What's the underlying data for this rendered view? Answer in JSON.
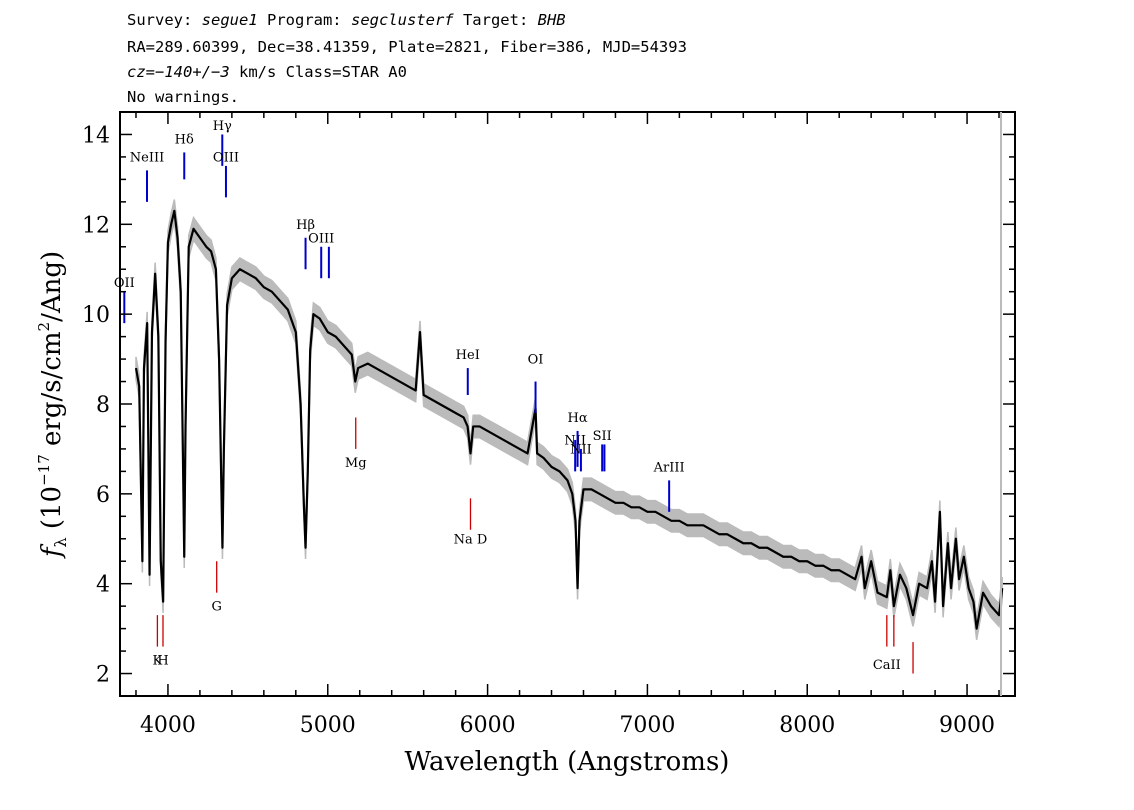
{
  "header": {
    "survey_label": "Survey: ",
    "survey": "segue1",
    "program_label": " Program: ",
    "program": "segclusterf",
    "target_label": " Target: ",
    "target": "BHB",
    "line2": "RA=289.60399, Dec=38.41359, Plate=2821, Fiber=386, MJD=54393",
    "cz": "cz=−140+/−3",
    "line3_rest": " km/s Class=STAR A0",
    "line4": "No warnings."
  },
  "chart_data": {
    "type": "line",
    "title": "",
    "xlabel": "Wavelength (Angstroms)",
    "ylabel_prefix": "f",
    "ylabel_sub": "λ",
    "ylabel_rest": " (10",
    "ylabel_exp": "−17",
    "ylabel_mid": " erg/s/cm",
    "ylabel_exp2": "2",
    "ylabel_end": "/Ang)",
    "xlim": [
      3700,
      9300
    ],
    "ylim": [
      1.5,
      14.5
    ],
    "x_ticks": [
      4000,
      5000,
      6000,
      7000,
      8000,
      9000
    ],
    "x_tick_labels": [
      "4000",
      "5000",
      "6000",
      "7000",
      "8000",
      "9000"
    ],
    "y_ticks": [
      2,
      4,
      6,
      8,
      10,
      12,
      14
    ],
    "y_tick_labels": [
      "2",
      "4",
      "6",
      "8",
      "10",
      "12",
      "14"
    ],
    "grid": false,
    "series_colors": {
      "flux": "#000000",
      "error": "#bbbbbb",
      "emission": "#0000cc",
      "absorption": "#cc0000"
    },
    "spectrum": [
      [
        3800,
        8.8
      ],
      [
        3820,
        8.4
      ],
      [
        3840,
        4.5
      ],
      [
        3850,
        8.8
      ],
      [
        3870,
        9.8
      ],
      [
        3885,
        4.2
      ],
      [
        3900,
        9.6
      ],
      [
        3920,
        10.9
      ],
      [
        3940,
        9.5
      ],
      [
        3955,
        4.5
      ],
      [
        3970,
        3.6
      ],
      [
        3985,
        9.4
      ],
      [
        4000,
        11.6
      ],
      [
        4020,
        12.0
      ],
      [
        4040,
        12.3
      ],
      [
        4060,
        11.7
      ],
      [
        4080,
        10.5
      ],
      [
        4095,
        6.5
      ],
      [
        4102,
        4.6
      ],
      [
        4110,
        7.5
      ],
      [
        4130,
        11.5
      ],
      [
        4160,
        11.9
      ],
      [
        4200,
        11.7
      ],
      [
        4240,
        11.5
      ],
      [
        4270,
        11.4
      ],
      [
        4300,
        11.0
      ],
      [
        4320,
        9.0
      ],
      [
        4335,
        6.0
      ],
      [
        4341,
        4.8
      ],
      [
        4350,
        7.0
      ],
      [
        4370,
        10.2
      ],
      [
        4400,
        10.8
      ],
      [
        4450,
        11.0
      ],
      [
        4500,
        10.9
      ],
      [
        4550,
        10.8
      ],
      [
        4600,
        10.6
      ],
      [
        4650,
        10.5
      ],
      [
        4700,
        10.3
      ],
      [
        4750,
        10.1
      ],
      [
        4800,
        9.6
      ],
      [
        4830,
        8.0
      ],
      [
        4850,
        5.8
      ],
      [
        4861,
        4.8
      ],
      [
        4875,
        6.5
      ],
      [
        4890,
        9.2
      ],
      [
        4910,
        10.0
      ],
      [
        4950,
        9.9
      ],
      [
        5000,
        9.6
      ],
      [
        5050,
        9.5
      ],
      [
        5100,
        9.3
      ],
      [
        5150,
        9.1
      ],
      [
        5172,
        8.5
      ],
      [
        5190,
        8.8
      ],
      [
        5250,
        8.9
      ],
      [
        5300,
        8.8
      ],
      [
        5350,
        8.7
      ],
      [
        5400,
        8.6
      ],
      [
        5450,
        8.5
      ],
      [
        5500,
        8.4
      ],
      [
        5550,
        8.3
      ],
      [
        5577,
        9.6
      ],
      [
        5600,
        8.2
      ],
      [
        5650,
        8.1
      ],
      [
        5700,
        8.0
      ],
      [
        5750,
        7.9
      ],
      [
        5800,
        7.8
      ],
      [
        5850,
        7.7
      ],
      [
        5875,
        7.5
      ],
      [
        5893,
        6.9
      ],
      [
        5910,
        7.5
      ],
      [
        5950,
        7.5
      ],
      [
        6000,
        7.4
      ],
      [
        6050,
        7.3
      ],
      [
        6100,
        7.2
      ],
      [
        6150,
        7.1
      ],
      [
        6200,
        7.0
      ],
      [
        6250,
        6.9
      ],
      [
        6300,
        7.9
      ],
      [
        6310,
        6.9
      ],
      [
        6350,
        6.8
      ],
      [
        6400,
        6.6
      ],
      [
        6450,
        6.5
      ],
      [
        6500,
        6.3
      ],
      [
        6530,
        6.0
      ],
      [
        6550,
        5.4
      ],
      [
        6563,
        3.9
      ],
      [
        6575,
        5.4
      ],
      [
        6600,
        6.1
      ],
      [
        6650,
        6.1
      ],
      [
        6700,
        6.0
      ],
      [
        6750,
        5.9
      ],
      [
        6800,
        5.8
      ],
      [
        6850,
        5.8
      ],
      [
        6900,
        5.7
      ],
      [
        6950,
        5.7
      ],
      [
        7000,
        5.6
      ],
      [
        7050,
        5.6
      ],
      [
        7100,
        5.5
      ],
      [
        7150,
        5.4
      ],
      [
        7200,
        5.4
      ],
      [
        7250,
        5.3
      ],
      [
        7300,
        5.3
      ],
      [
        7350,
        5.3
      ],
      [
        7400,
        5.2
      ],
      [
        7450,
        5.1
      ],
      [
        7500,
        5.1
      ],
      [
        7550,
        5.0
      ],
      [
        7600,
        4.9
      ],
      [
        7650,
        4.9
      ],
      [
        7700,
        4.8
      ],
      [
        7750,
        4.8
      ],
      [
        7800,
        4.7
      ],
      [
        7850,
        4.6
      ],
      [
        7900,
        4.6
      ],
      [
        7950,
        4.5
      ],
      [
        8000,
        4.5
      ],
      [
        8050,
        4.4
      ],
      [
        8100,
        4.4
      ],
      [
        8150,
        4.3
      ],
      [
        8200,
        4.3
      ],
      [
        8250,
        4.2
      ],
      [
        8300,
        4.1
      ],
      [
        8340,
        4.6
      ],
      [
        8360,
        3.9
      ],
      [
        8400,
        4.5
      ],
      [
        8440,
        3.8
      ],
      [
        8498,
        3.7
      ],
      [
        8520,
        4.3
      ],
      [
        8542,
        3.5
      ],
      [
        8580,
        4.2
      ],
      [
        8620,
        3.9
      ],
      [
        8662,
        3.3
      ],
      [
        8700,
        4.0
      ],
      [
        8750,
        3.9
      ],
      [
        8780,
        4.5
      ],
      [
        8800,
        3.6
      ],
      [
        8830,
        5.6
      ],
      [
        8850,
        3.5
      ],
      [
        8880,
        4.9
      ],
      [
        8900,
        3.9
      ],
      [
        8930,
        5.0
      ],
      [
        8950,
        4.1
      ],
      [
        8980,
        4.6
      ],
      [
        9010,
        3.9
      ],
      [
        9040,
        3.6
      ],
      [
        9060,
        3.0
      ],
      [
        9100,
        3.8
      ],
      [
        9150,
        3.5
      ],
      [
        9200,
        3.3
      ],
      [
        9220,
        3.9
      ]
    ],
    "emission_lines": [
      {
        "label": "OII",
        "x": 3727,
        "y0": 9.8,
        "y1": 10.5,
        "label_y": 10.6
      },
      {
        "label": "NeIII",
        "x": 3869,
        "y0": 12.5,
        "y1": 13.2,
        "label_y": 13.4
      },
      {
        "label": "Hδ",
        "x": 4102,
        "y0": 13.0,
        "y1": 13.6,
        "label_y": 13.8
      },
      {
        "label": "Hγ",
        "x": 4340,
        "y0": 13.3,
        "y1": 14.0,
        "label_y": 14.1
      },
      {
        "label": "OIII",
        "x": 4363,
        "y0": 12.6,
        "y1": 13.3,
        "label_y": 13.4
      },
      {
        "label": "Hβ",
        "x": 4861,
        "y0": 11.0,
        "y1": 11.7,
        "label_y": 11.9
      },
      {
        "label": "OIII",
        "x": 4959,
        "y0": 10.8,
        "y1": 11.5,
        "label_y": 11.6
      },
      {
        "label": "",
        "x": 5007,
        "y0": 10.8,
        "y1": 11.5,
        "label_y": 0
      },
      {
        "label": "HeI",
        "x": 5876,
        "y0": 8.2,
        "y1": 8.8,
        "label_y": 9.0
      },
      {
        "label": "OI",
        "x": 6300,
        "y0": 7.8,
        "y1": 8.5,
        "label_y": 8.9
      },
      {
        "label": "NII",
        "x": 6548,
        "y0": 6.5,
        "y1": 7.2,
        "label_y": 7.1
      },
      {
        "label": "Hα",
        "x": 6563,
        "y0": 6.6,
        "y1": 7.4,
        "label_y": 7.6
      },
      {
        "label": "NII",
        "x": 6584,
        "y0": 6.5,
        "y1": 7.0,
        "label_y": 6.9
      },
      {
        "label": "SII",
        "x": 6717,
        "y0": 6.5,
        "y1": 7.1,
        "label_y": 7.2
      },
      {
        "label": "",
        "x": 6731,
        "y0": 6.5,
        "y1": 7.1,
        "label_y": 0
      },
      {
        "label": "ArIII",
        "x": 7136,
        "y0": 5.6,
        "y1": 6.3,
        "label_y": 6.5
      }
    ],
    "absorption_lines": [
      {
        "label": "Mg",
        "x": 5175,
        "y0": 7.0,
        "y1": 7.7,
        "label_y": 6.6
      },
      {
        "label": "Na D",
        "x": 5893,
        "y0": 5.2,
        "y1": 5.9,
        "label_y": 4.9
      },
      {
        "label": "G",
        "x": 4305,
        "y0": 3.8,
        "y1": 4.5,
        "label_y": 3.4
      },
      {
        "label": "K",
        "x": 3934,
        "y0": 2.6,
        "y1": 3.3,
        "label_y": 2.2
      },
      {
        "label": "H",
        "x": 3969,
        "y0": 2.6,
        "y1": 3.3,
        "label_y": 2.2
      },
      {
        "label": "CaII",
        "x": 8498,
        "y0": 2.6,
        "y1": 3.3,
        "label_y": 2.1
      },
      {
        "label": "",
        "x": 8542,
        "y0": 2.6,
        "y1": 3.3,
        "label_y": 0
      },
      {
        "label": "",
        "x": 8662,
        "y0": 2.0,
        "y1": 2.7,
        "label_y": 0
      }
    ]
  }
}
